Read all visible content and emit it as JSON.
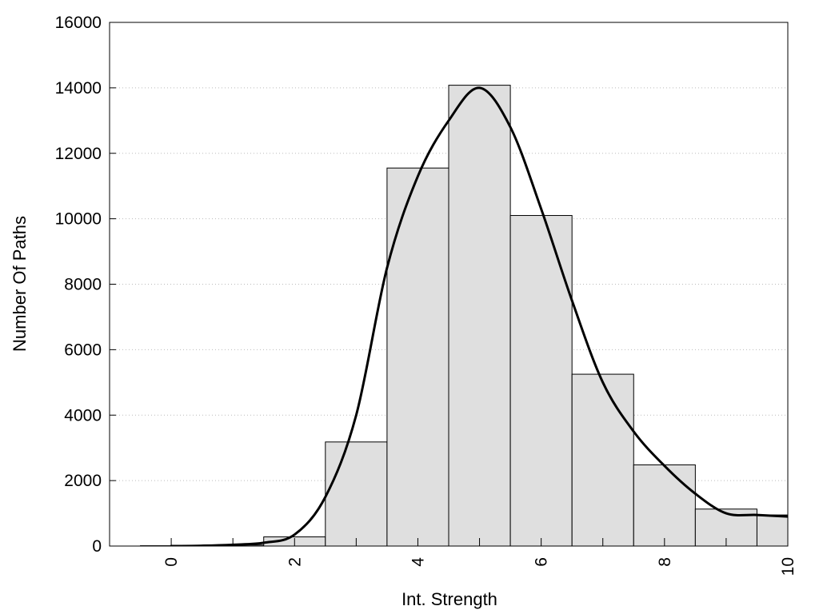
{
  "chart_data": {
    "type": "bar",
    "title": "",
    "xlabel": "Int. Strength",
    "ylabel": "Number Of Paths",
    "xlim": [
      -1,
      10
    ],
    "ylim": [
      0,
      16000
    ],
    "xticks": [
      0,
      2,
      4,
      6,
      8,
      10
    ],
    "yticks": [
      0,
      2000,
      4000,
      6000,
      8000,
      10000,
      12000,
      14000,
      16000
    ],
    "grid": "horizontal dotted",
    "bin_width": 1,
    "bins": [
      {
        "x": 0,
        "value": 10
      },
      {
        "x": 1,
        "value": 30
      },
      {
        "x": 2,
        "value": 280
      },
      {
        "x": 3,
        "value": 3180
      },
      {
        "x": 4,
        "value": 11550
      },
      {
        "x": 5,
        "value": 14080
      },
      {
        "x": 6,
        "value": 10100
      },
      {
        "x": 7,
        "value": 5250
      },
      {
        "x": 8,
        "value": 2480
      },
      {
        "x": 9,
        "value": 1130
      },
      {
        "x": 10,
        "value": 950
      }
    ],
    "curve": {
      "x": [
        0,
        0.5,
        1,
        1.5,
        2,
        2.5,
        3,
        3.5,
        4,
        4.5,
        5,
        5.5,
        6,
        6.5,
        7,
        7.5,
        8,
        8.5,
        9,
        9.5,
        10
      ],
      "y": [
        0,
        10,
        40,
        100,
        350,
        1500,
        4000,
        8500,
        11300,
        13000,
        14000,
        12800,
        10300,
        7500,
        5000,
        3500,
        2450,
        1600,
        1000,
        950,
        900
      ]
    },
    "colors": {
      "bar_fill": "#dfdfdf",
      "bar_stroke": "#000000",
      "curve": "#000000",
      "grid": "#bbbbbb"
    }
  }
}
